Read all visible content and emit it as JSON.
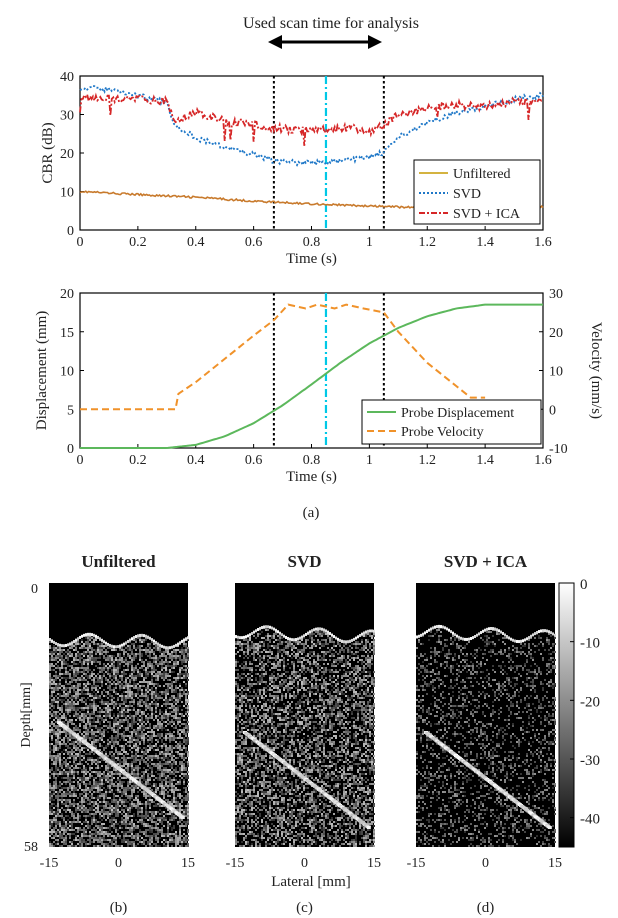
{
  "annotation": {
    "text": "Used scan time for analysis"
  },
  "chart_data": [
    {
      "type": "line",
      "panel": "a-top",
      "xlabel": "Time (s)",
      "ylabel": "CBR (dB)",
      "xlim": [
        0,
        1.6
      ],
      "ylim": [
        0,
        40
      ],
      "xticks": [
        "0",
        "0.2",
        "0.4",
        "0.6",
        "0.8",
        "1",
        "1.2",
        "1.4",
        "1.6"
      ],
      "yticks": [
        "0",
        "10",
        "20",
        "30",
        "40"
      ],
      "legend_position": "bottom-right",
      "vlines": [
        0.67,
        0.85,
        1.05
      ],
      "series": [
        {
          "name": "Unfiltered",
          "color": "#c87a2c",
          "legend_color": "#d4b340",
          "x": [
            0,
            0.2,
            0.4,
            0.6,
            0.8,
            1.0,
            1.2,
            1.4,
            1.6
          ],
          "y": [
            10,
            9.2,
            8.5,
            7.5,
            6.8,
            6.2,
            5.8,
            5.9,
            6.0
          ]
        },
        {
          "name": "SVD",
          "color": "#1f78c8",
          "x": [
            0,
            0.1,
            0.2,
            0.3,
            0.33,
            0.36,
            0.4,
            0.5,
            0.6,
            0.67,
            0.75,
            0.85,
            0.95,
            1.0,
            1.05,
            1.1,
            1.2,
            1.3,
            1.4,
            1.5,
            1.6
          ],
          "y": [
            37,
            36.5,
            35,
            33,
            27,
            26,
            24,
            21.5,
            19.5,
            18,
            17.5,
            17.5,
            18.5,
            19,
            20,
            24,
            28,
            30.5,
            32,
            34,
            35
          ]
        },
        {
          "name": "SVD + ICA",
          "color": "#d62728",
          "x": [
            0,
            0.1,
            0.2,
            0.3,
            0.33,
            0.36,
            0.4,
            0.5,
            0.6,
            0.67,
            0.75,
            0.85,
            0.95,
            1.0,
            1.05,
            1.1,
            1.2,
            1.3,
            1.4,
            1.5,
            1.6
          ],
          "y": [
            34.5,
            34,
            34,
            33.5,
            28,
            29.5,
            30.5,
            28.5,
            27.5,
            26.5,
            26,
            26,
            26.5,
            25.5,
            27.5,
            30,
            31.5,
            32.5,
            32,
            33.5,
            33
          ]
        }
      ]
    },
    {
      "type": "line",
      "panel": "a-bottom",
      "xlabel": "Time (s)",
      "ylabel": "Displacement (mm)",
      "ylabel_right": "Velocity (mm/s)",
      "xlim": [
        0,
        1.6
      ],
      "ylim": [
        0,
        20
      ],
      "ylim_right": [
        -10,
        30
      ],
      "xticks": [
        "0",
        "0.2",
        "0.4",
        "0.6",
        "0.8",
        "1",
        "1.2",
        "1.4",
        "1.6"
      ],
      "yticks": [
        "0",
        "5",
        "10",
        "15",
        "20"
      ],
      "yticks_right": [
        "-10",
        "0",
        "10",
        "20",
        "30"
      ],
      "legend_position": "bottom-right",
      "vlines": [
        0.67,
        0.85,
        1.05
      ],
      "series": [
        {
          "name": "Probe Displacement",
          "axis": "left",
          "color": "#5cb85c",
          "x": [
            0,
            0.3,
            0.4,
            0.5,
            0.6,
            0.7,
            0.8,
            0.9,
            1.0,
            1.1,
            1.2,
            1.3,
            1.4,
            1.5,
            1.6
          ],
          "y": [
            0,
            0,
            0.4,
            1.5,
            3.2,
            5.5,
            8.2,
            11.0,
            13.5,
            15.5,
            17.0,
            18.0,
            18.5,
            18.5,
            18.5
          ]
        },
        {
          "name": "Probe Velocity",
          "axis": "right",
          "color": "#f0922a",
          "x": [
            0,
            0.33,
            0.34,
            0.4,
            0.5,
            0.6,
            0.67,
            0.72,
            0.78,
            0.82,
            0.88,
            0.92,
            0.98,
            1.05,
            1.1,
            1.2,
            1.3,
            1.35,
            1.4
          ],
          "y": [
            0,
            0,
            4,
            7,
            13,
            19,
            23,
            27,
            26,
            27,
            26,
            27,
            26,
            25,
            20,
            12,
            6,
            3,
            3
          ]
        }
      ]
    },
    {
      "type": "heatmap",
      "panels": [
        {
          "title": "Unfiltered",
          "label": "(b)",
          "variant": "unfiltered"
        },
        {
          "title": "SVD",
          "label": "(c)",
          "variant": "svd"
        },
        {
          "title": "SVD + ICA",
          "label": "(d)",
          "variant": "ica"
        }
      ],
      "ylabel": "Depth[mm]",
      "xlabel": "Lateral [mm]",
      "yticks": [
        "0",
        "58"
      ],
      "xticks": [
        "-15",
        "0",
        "15"
      ],
      "colorbar": {
        "ticks": [
          "0",
          "-10",
          "-20",
          "-30",
          "-40"
        ],
        "range": [
          -45,
          0
        ]
      }
    }
  ],
  "caption_a": "(a)"
}
